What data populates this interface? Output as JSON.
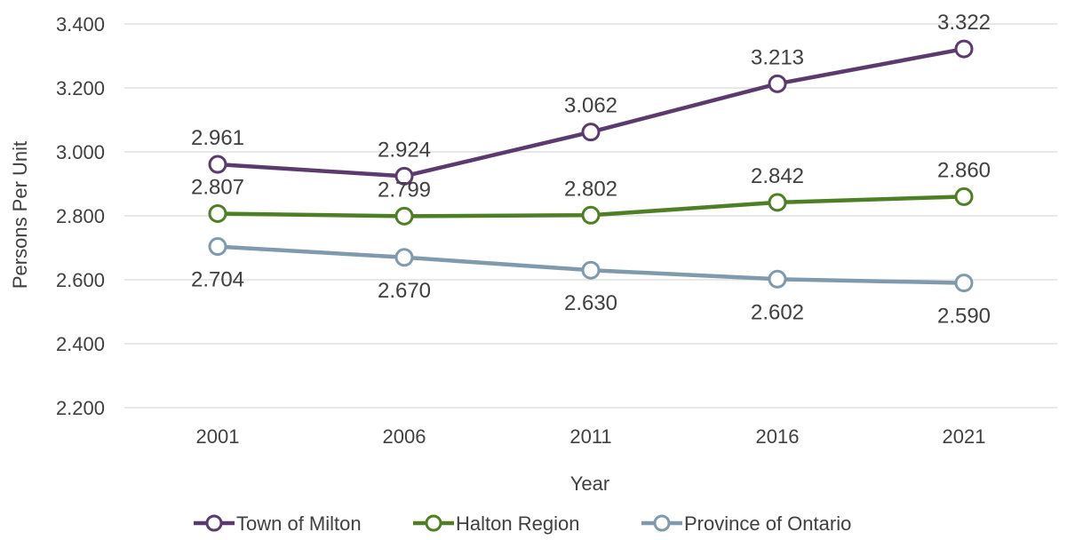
{
  "chart_data": {
    "type": "line",
    "categories": [
      "2001",
      "2006",
      "2011",
      "2016",
      "2021"
    ],
    "xlabel": "Year",
    "ylabel": "Persons Per Unit",
    "ylim": [
      2.2,
      3.4
    ],
    "yticks": [
      "2.200",
      "2.400",
      "2.600",
      "2.800",
      "3.000",
      "3.200",
      "3.400"
    ],
    "grid": true,
    "legend_position": "bottom",
    "series": [
      {
        "name": "Town of Milton",
        "color": "#5b3a6e",
        "values": [
          2.961,
          2.924,
          3.062,
          3.213,
          3.322
        ],
        "labels": [
          "2.961",
          "2.924",
          "3.062",
          "3.213",
          "3.322"
        ]
      },
      {
        "name": "Halton Region",
        "color": "#4e7f24",
        "values": [
          2.807,
          2.799,
          2.802,
          2.842,
          2.86
        ],
        "labels": [
          "2.807",
          "2.799",
          "2.802",
          "2.842",
          "2.860"
        ]
      },
      {
        "name": "Province of Ontario",
        "color": "#7f9aac",
        "values": [
          2.704,
          2.67,
          2.63,
          2.602,
          2.59
        ],
        "labels": [
          "2.704",
          "2.670",
          "2.630",
          "2.602",
          "2.590"
        ]
      }
    ]
  }
}
